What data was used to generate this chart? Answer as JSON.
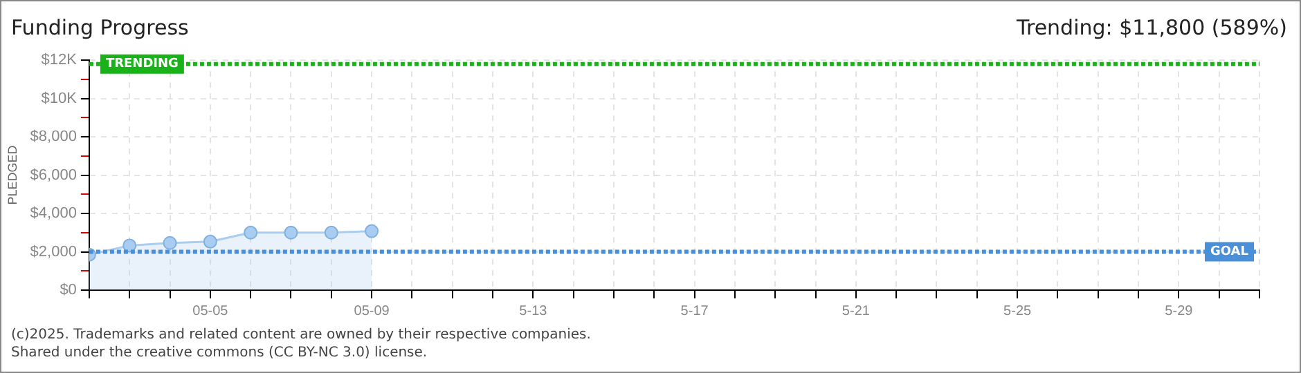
{
  "chart_data": {
    "type": "area",
    "title": "Funding Progress",
    "subtitle": "Trending:  $11,800 (589%)",
    "ylabel": "PLEDGED",
    "x": [
      "--05-02",
      "--05-03",
      "--05-04",
      "--05-05",
      "--05-06",
      "--05-07",
      "--05-08",
      "--05-09"
    ],
    "series": [
      {
        "color": "#a8cdf0",
        "values": [
          1850,
          2330,
          2460,
          2530,
          3000,
          3000,
          3000,
          3080
        ]
      }
    ],
    "xlim": [
      "--05-02",
      "--05-31"
    ],
    "xticks": [
      {
        "value": "--05-02",
        "label": null
      },
      {
        "value": "--05-03",
        "label": null
      },
      {
        "value": "--05-04",
        "label": null
      },
      {
        "value": "--05-05",
        "label": "05-05"
      },
      {
        "value": "--05-06",
        "label": null
      },
      {
        "value": "--05-07",
        "label": null
      },
      {
        "value": "--05-08",
        "label": null
      },
      {
        "value": "--05-09",
        "label": "05-09"
      },
      {
        "value": "--05-10",
        "label": null
      },
      {
        "value": "--05-11",
        "label": null
      },
      {
        "value": "--05-12",
        "label": null
      },
      {
        "value": "--05-13",
        "label": "5-13"
      },
      {
        "value": "--05-14",
        "label": null
      },
      {
        "value": "--05-15",
        "label": null
      },
      {
        "value": "--05-16",
        "label": null
      },
      {
        "value": "--05-17",
        "label": "5-17"
      },
      {
        "value": "--05-18",
        "label": null
      },
      {
        "value": "--05-19",
        "label": null
      },
      {
        "value": "--05-20",
        "label": null
      },
      {
        "value": "--05-21",
        "label": "5-21"
      },
      {
        "value": "--05-22",
        "label": null
      },
      {
        "value": "--05-23",
        "label": null
      },
      {
        "value": "--05-24",
        "label": null
      },
      {
        "value": "--05-25",
        "label": "5-25"
      },
      {
        "value": "--05-26",
        "label": null
      },
      {
        "value": "--05-27",
        "label": null
      },
      {
        "value": "--05-28",
        "label": null
      },
      {
        "value": "--05-29",
        "label": "5-29"
      },
      {
        "value": "--05-30",
        "label": null
      },
      {
        "value": "--05-31",
        "label": null
      }
    ],
    "ylim": [
      0,
      12000
    ],
    "yticks": [
      {
        "value": 0,
        "label": "$0"
      },
      {
        "value": 1000,
        "label": null
      },
      {
        "value": 2000,
        "label": "$2,000"
      },
      {
        "value": 3000,
        "label": null
      },
      {
        "value": 4000,
        "label": "$4,000"
      },
      {
        "value": 5000,
        "label": null
      },
      {
        "value": 6000,
        "label": "$6,000"
      },
      {
        "value": 7000,
        "label": null
      },
      {
        "value": 8000,
        "label": "$8,000"
      },
      {
        "value": 9000,
        "label": null
      },
      {
        "value": 10000,
        "label": "$10K"
      },
      {
        "value": 11000,
        "label": null
      },
      {
        "value": 12000,
        "label": "$12K"
      }
    ],
    "ref_lines": [
      {
        "axis": "y",
        "value": 2000,
        "label": "GOAL",
        "color": "#4a90d9",
        "line_style": "dotted"
      },
      {
        "axis": "y",
        "value": 11800,
        "label": "TRENDING",
        "color": "#19b319",
        "line_style": "dotted"
      }
    ],
    "grid": true,
    "marker": "circle",
    "legend": false,
    "annotations": [
      "(c)2025. Trademarks and related content are owned by their respective companies.",
      "Shared under the creative commons (CC BY-NC 3.0) license."
    ]
  }
}
